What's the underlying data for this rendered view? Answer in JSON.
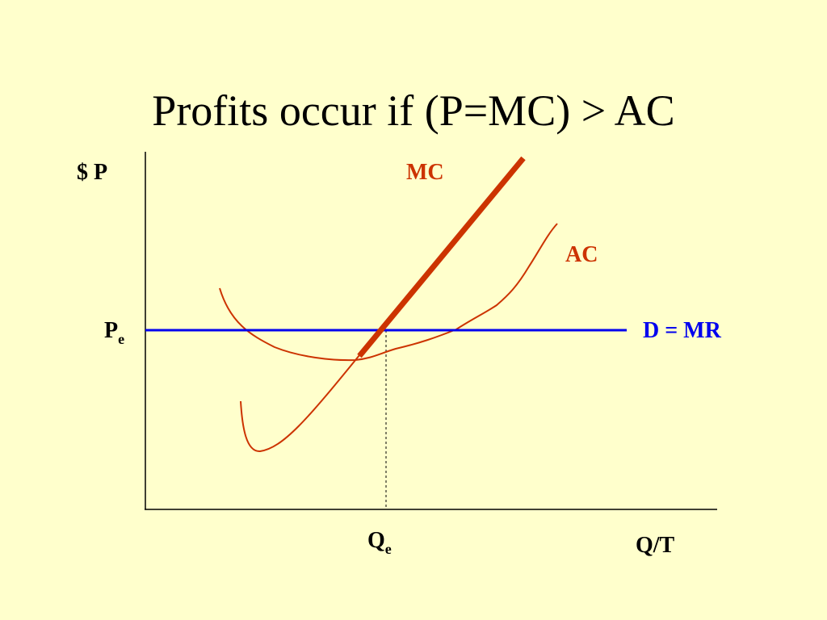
{
  "title": "Profits occur if (P=MC) > AC",
  "labels": {
    "y_axis": "$ P",
    "x_axis": "Q/T",
    "mc": "MC",
    "ac": "AC",
    "demand": "D = MR",
    "price_eq": {
      "main": "P",
      "sub": "e"
    },
    "quantity_eq": {
      "main": "Q",
      "sub": "e"
    }
  }
}
